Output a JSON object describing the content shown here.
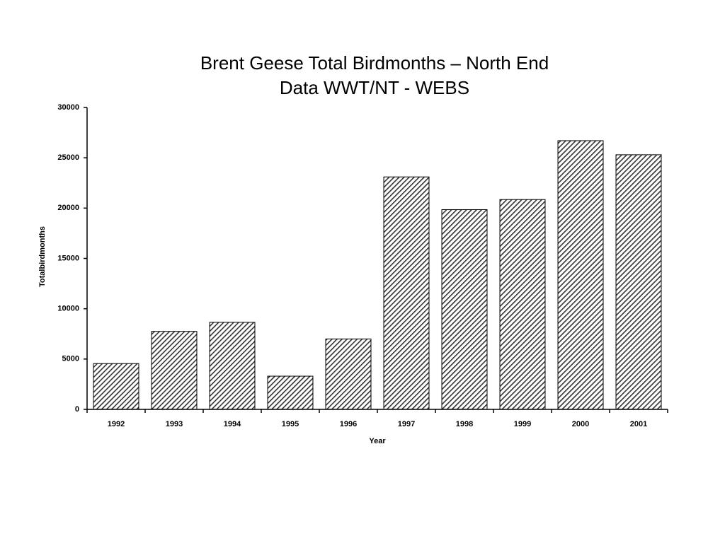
{
  "chart_data": {
    "type": "bar",
    "title": "Brent Geese Total Birdmonths – North End",
    "subtitle": "Data WWT/NT - WEBS",
    "x_label": "Year",
    "y_label": "Totalbirdmonths",
    "categories": [
      "1992",
      "1993",
      "1994",
      "1995",
      "1996",
      "1997",
      "1998",
      "1999",
      "2000",
      "2001"
    ],
    "values": [
      4550,
      7750,
      8650,
      3300,
      7000,
      23100,
      19850,
      20850,
      26700,
      25300
    ],
    "color": "#333333",
    "ylim": [
      0,
      30000
    ],
    "yticks": [
      0,
      5000,
      10000,
      15000,
      20000,
      25000,
      30000
    ],
    "grid": false
  }
}
